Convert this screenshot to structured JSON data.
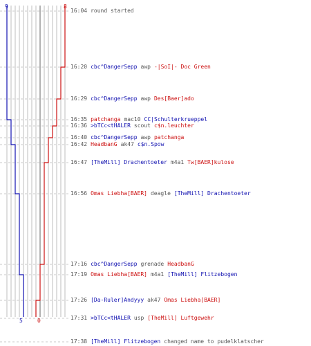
{
  "colors": {
    "blue": "#1010b0",
    "red": "#cc1010",
    "grid": "#bdbdbd",
    "text": "#555555"
  },
  "scores": {
    "blue_start": "9",
    "red_start": "8",
    "blue_end": "5",
    "red_end": "0"
  },
  "events": [
    {
      "time": "16:04",
      "parts": [
        {
          "t": "round started",
          "c": "grey"
        }
      ]
    },
    {
      "time": "16:20",
      "parts": [
        {
          "t": "cbc^DangerSepp",
          "c": "blue"
        },
        {
          "t": "awp",
          "c": "grey"
        },
        {
          "t": "-|SoI|- Doc Green",
          "c": "red"
        }
      ]
    },
    {
      "time": "16:29",
      "parts": [
        {
          "t": "cbc^DangerSepp",
          "c": "blue"
        },
        {
          "t": "awp",
          "c": "grey"
        },
        {
          "t": "Des[Baer]ado",
          "c": "red"
        }
      ]
    },
    {
      "time": "16:35",
      "parts": [
        {
          "t": "patchanga",
          "c": "red"
        },
        {
          "t": "mac10",
          "c": "grey"
        },
        {
          "t": "CC|Schulterkrueppel",
          "c": "blue"
        }
      ]
    },
    {
      "time": "16:36",
      "parts": [
        {
          "t": ">bTCc<tHALER",
          "c": "blue"
        },
        {
          "t": "scout",
          "c": "grey"
        },
        {
          "t": "c$n.leuchter",
          "c": "red"
        }
      ]
    },
    {
      "time": "16:40",
      "parts": [
        {
          "t": "cbc^DangerSepp",
          "c": "blue"
        },
        {
          "t": "awp",
          "c": "grey"
        },
        {
          "t": "patchanga",
          "c": "red"
        }
      ]
    },
    {
      "time": "16:42",
      "parts": [
        {
          "t": "HeadbanG",
          "c": "red"
        },
        {
          "t": "ak47",
          "c": "grey"
        },
        {
          "t": "c$n.Spow",
          "c": "blue"
        }
      ]
    },
    {
      "time": "16:47",
      "parts": [
        {
          "t": "[TheMill] Drachentoeter",
          "c": "blue"
        },
        {
          "t": "m4a1",
          "c": "grey"
        },
        {
          "t": "Tw[BAER]kulose",
          "c": "red"
        }
      ]
    },
    {
      "time": "16:56",
      "parts": [
        {
          "t": "Omas Liebha[BAER]",
          "c": "red"
        },
        {
          "t": "deagle",
          "c": "grey"
        },
        {
          "t": "[TheMill] Drachentoeter",
          "c": "blue"
        }
      ]
    },
    {
      "time": "17:16",
      "parts": [
        {
          "t": "cbc^DangerSepp",
          "c": "blue"
        },
        {
          "t": "grenade",
          "c": "grey"
        },
        {
          "t": "HeadbanG",
          "c": "red"
        }
      ]
    },
    {
      "time": "17:19",
      "parts": [
        {
          "t": "Omas Liebha[BAER]",
          "c": "red"
        },
        {
          "t": "m4a1",
          "c": "grey"
        },
        {
          "t": "[TheMill] Flitzebogen",
          "c": "blue"
        }
      ]
    },
    {
      "time": "17:26",
      "parts": [
        {
          "t": "[Da-Ruler]Andyyy",
          "c": "blue"
        },
        {
          "t": "ak47",
          "c": "grey"
        },
        {
          "t": "Omas Liebha[BAER]",
          "c": "red"
        }
      ]
    },
    {
      "time": "17:31",
      "parts": [
        {
          "t": ">bTCc<tHALER",
          "c": "blue"
        },
        {
          "t": "usp",
          "c": "grey"
        },
        {
          "t": "[TheMill] Luftgewehr",
          "c": "red"
        }
      ]
    },
    {
      "time": "17:38",
      "parts": [
        {
          "t": "[TheMill] Flitzebogen",
          "c": "blue"
        },
        {
          "t": "changed name to pudelklatscher",
          "c": "grey"
        }
      ]
    }
  ]
}
